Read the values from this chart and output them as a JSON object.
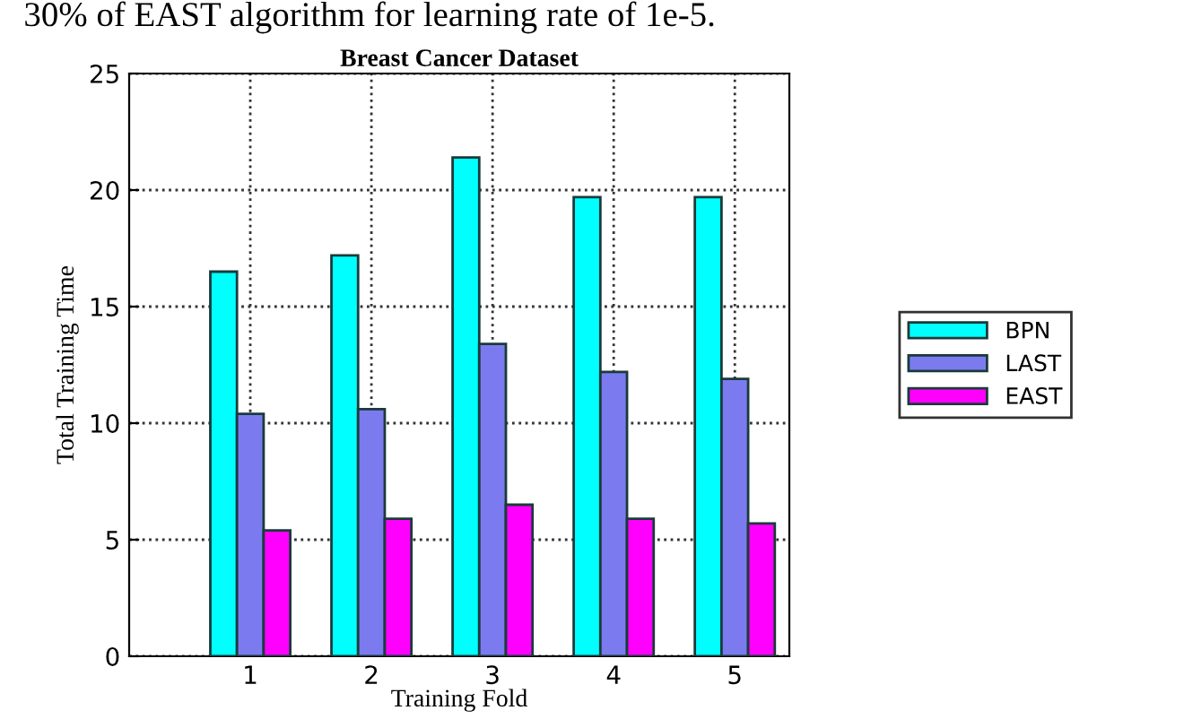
{
  "chart_data": {
    "type": "bar",
    "title": "Breast Cancer Dataset",
    "xlabel": "Training Fold",
    "ylabel": "Total Training Time",
    "annotations": [
      "30% of EAST algorithm for learning rate of 1e-5."
    ],
    "categories": [
      "1",
      "2",
      "3",
      "4",
      "5"
    ],
    "series": [
      {
        "name": "BPN",
        "color": "#00ffff",
        "values": [
          16.5,
          17.2,
          21.4,
          19.7,
          19.7
        ]
      },
      {
        "name": "LAST",
        "color": "#7b7bef",
        "values": [
          10.4,
          10.6,
          13.4,
          12.2,
          11.9
        ]
      },
      {
        "name": "EAST",
        "color": "#ff00ff",
        "values": [
          5.4,
          5.9,
          6.5,
          5.9,
          5.7
        ]
      }
    ],
    "ylim": [
      0,
      25
    ],
    "yticks": [
      0,
      5,
      10,
      15,
      20,
      25
    ],
    "grid": true,
    "legend": "right",
    "line_style": "dotted"
  }
}
